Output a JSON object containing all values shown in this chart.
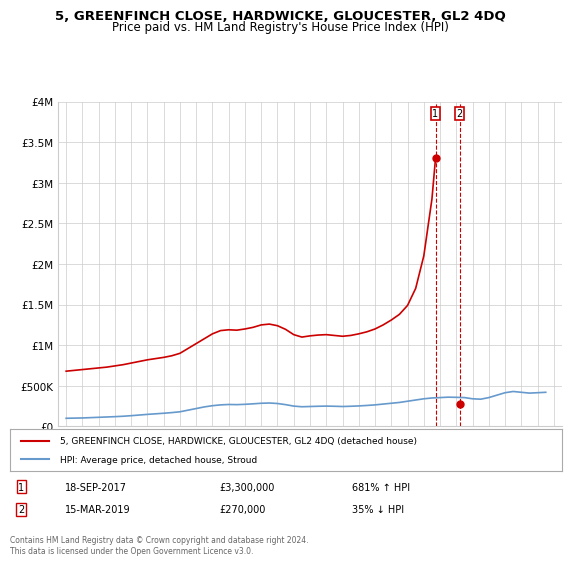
{
  "title": "5, GREENFINCH CLOSE, HARDWICKE, GLOUCESTER, GL2 4DQ",
  "subtitle": "Price paid vs. HM Land Registry's House Price Index (HPI)",
  "legend_line1": "5, GREENFINCH CLOSE, HARDWICKE, GLOUCESTER, GL2 4DQ (detached house)",
  "legend_line2": "HPI: Average price, detached house, Stroud",
  "annotation1_label": "1",
  "annotation1_date": "18-SEP-2017",
  "annotation1_price": "£3,300,000",
  "annotation1_hpi": "681% ↑ HPI",
  "annotation2_label": "2",
  "annotation2_date": "15-MAR-2019",
  "annotation2_price": "£270,000",
  "annotation2_hpi": "35% ↓ HPI",
  "footer": "Contains HM Land Registry data © Crown copyright and database right 2024.\nThis data is licensed under the Open Government Licence v3.0.",
  "red_color": "#cc0000",
  "blue_color": "#6699cc",
  "annotation_vline_color": "#cc0000",
  "grid_color": "#cccccc",
  "point1_x": 2017.72,
  "point1_y": 3300000,
  "point2_x": 2019.21,
  "point2_y": 270000,
  "ylim": [
    0,
    4000000
  ],
  "xlim": [
    1994.5,
    2025.5
  ],
  "yticks": [
    0,
    500000,
    1000000,
    1500000,
    2000000,
    2500000,
    3000000,
    3500000,
    4000000
  ],
  "ytick_labels": [
    "£0",
    "£500K",
    "£1M",
    "£1.5M",
    "£2M",
    "£2.5M",
    "£3M",
    "£3.5M",
    "£4M"
  ],
  "xticks": [
    1995,
    1996,
    1997,
    1998,
    1999,
    2000,
    2001,
    2002,
    2003,
    2004,
    2005,
    2006,
    2007,
    2008,
    2009,
    2010,
    2011,
    2012,
    2013,
    2014,
    2015,
    2016,
    2017,
    2018,
    2019,
    2020,
    2021,
    2022,
    2023,
    2024,
    2025
  ],
  "hpi_x": [
    1995,
    1995.5,
    1996,
    1996.5,
    1997,
    1997.5,
    1998,
    1998.5,
    1999,
    1999.5,
    2000,
    2000.5,
    2001,
    2001.5,
    2002,
    2002.5,
    2003,
    2003.5,
    2004,
    2004.5,
    2005,
    2005.5,
    2006,
    2006.5,
    2007,
    2007.5,
    2008,
    2008.5,
    2009,
    2009.5,
    2010,
    2010.5,
    2011,
    2011.5,
    2012,
    2012.5,
    2013,
    2013.5,
    2014,
    2014.5,
    2015,
    2015.5,
    2016,
    2016.5,
    2017,
    2017.5,
    2018,
    2018.5,
    2019,
    2019.5,
    2020,
    2020.5,
    2021,
    2021.5,
    2022,
    2022.5,
    2023,
    2023.5,
    2024,
    2024.5
  ],
  "hpi_y": [
    100000,
    102000,
    104000,
    108000,
    112000,
    116000,
    120000,
    125000,
    132000,
    140000,
    148000,
    155000,
    162000,
    170000,
    180000,
    200000,
    220000,
    240000,
    255000,
    265000,
    270000,
    268000,
    272000,
    278000,
    285000,
    288000,
    282000,
    268000,
    250000,
    242000,
    245000,
    248000,
    250000,
    248000,
    245000,
    248000,
    252000,
    258000,
    265000,
    275000,
    285000,
    295000,
    310000,
    325000,
    340000,
    350000,
    355000,
    360000,
    358000,
    355000,
    340000,
    335000,
    355000,
    385000,
    415000,
    430000,
    420000,
    410000,
    415000,
    420000
  ],
  "red_x": [
    1995,
    1995.5,
    1996,
    1996.5,
    1997,
    1997.5,
    1998,
    1998.5,
    1999,
    1999.5,
    2000,
    2000.5,
    2001,
    2001.5,
    2002,
    2002.5,
    2003,
    2003.5,
    2004,
    2004.5,
    2005,
    2005.5,
    2006,
    2006.5,
    2007,
    2007.5,
    2008,
    2008.5,
    2009,
    2009.5,
    2010,
    2010.5,
    2011,
    2011.5,
    2012,
    2012.5,
    2013,
    2013.5,
    2014,
    2014.5,
    2015,
    2015.5,
    2016,
    2016.5,
    2017,
    2017.5,
    2017.72
  ],
  "red_y": [
    680000,
    690000,
    700000,
    710000,
    720000,
    730000,
    745000,
    760000,
    780000,
    800000,
    820000,
    835000,
    850000,
    870000,
    900000,
    960000,
    1020000,
    1080000,
    1140000,
    1180000,
    1190000,
    1185000,
    1200000,
    1220000,
    1250000,
    1260000,
    1240000,
    1195000,
    1130000,
    1100000,
    1115000,
    1125000,
    1130000,
    1120000,
    1110000,
    1120000,
    1140000,
    1165000,
    1200000,
    1250000,
    1310000,
    1380000,
    1490000,
    1700000,
    2100000,
    2800000,
    3300000
  ]
}
